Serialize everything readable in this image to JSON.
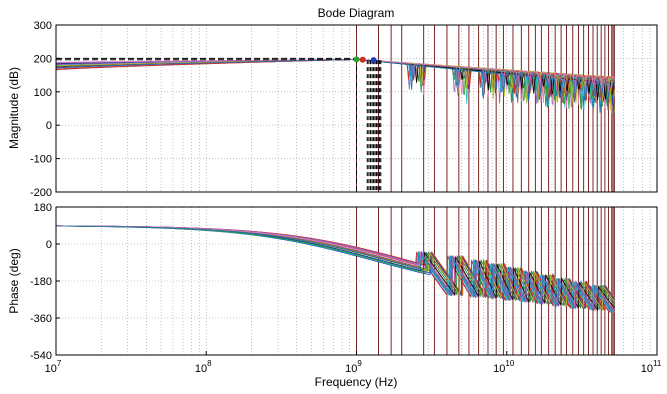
{
  "chart_data": [
    {
      "type": "line",
      "title": "Bode Diagram",
      "ylabel": "Magnitude (dB)",
      "xlabel": "",
      "x_scale": "log",
      "xlim": [
        10000000,
        100000000000
      ],
      "ylim": [
        -200,
        300
      ],
      "yticks": [
        -200,
        -100,
        0,
        100,
        200,
        300
      ],
      "grid": true,
      "legend": "none",
      "series_count": 30,
      "envelope": {
        "low_freq_level_db": [
          165,
          190
        ],
        "level_at_1e9_db": 197,
        "resonance_peaks_hz": [
          2500000000,
          5000000000,
          7500000000,
          10000000000,
          12500000000,
          15000000000,
          17500000000,
          20000000000,
          22500000000,
          25000000000,
          30000000000,
          35000000000,
          40000000000,
          45000000000,
          50000000000
        ],
        "notch_depth_db": [
          30,
          80
        ],
        "level_at_5e10_db": 130
      },
      "markers": [
        {
          "x": 1000000000,
          "y": 197,
          "color": "#2ca02c"
        },
        {
          "x": 1100000000,
          "y": 196,
          "color": "#d62728"
        },
        {
          "x": 1300000000,
          "y": 195,
          "color": "#1f3fbf"
        }
      ],
      "reference_line_db": 200
    },
    {
      "type": "line",
      "title": "",
      "ylabel": "Phase (deg)",
      "xlabel": "Frequency  (Hz)",
      "x_scale": "log",
      "xlim": [
        10000000,
        100000000000
      ],
      "xticks": [
        10000000,
        100000000,
        1000000000,
        10000000000,
        100000000000
      ],
      "xtick_labels": [
        [
          "10",
          "7"
        ],
        [
          "10",
          "8"
        ],
        [
          "10",
          "9"
        ],
        [
          "10",
          "10"
        ],
        [
          "10",
          "11"
        ]
      ],
      "ylim": [
        -540,
        180
      ],
      "yticks": [
        -540,
        -360,
        -180,
        0,
        180
      ],
      "grid": true,
      "legend": "none",
      "series_count": 30,
      "envelope": {
        "low_freq_phase_deg": 90,
        "phase_at_1e9_deg": [
          -10,
          30
        ],
        "phase_at_2_5e9_deg": [
          -280,
          -200
        ],
        "wrap_points_hz": [
          2800000000,
          4500000000,
          6500000000,
          8500000000,
          11000000000,
          14000000000,
          18000000000,
          23000000000,
          30000000000,
          40000000000
        ],
        "phase_at_5e10_deg": [
          -330,
          -260
        ]
      }
    }
  ],
  "vertical_lines_hz": [
    1000000000,
    1400000000,
    1700000000,
    2000000000,
    2800000000,
    3300000000,
    4000000000,
    4800000000,
    5600000000,
    6500000000,
    7500000000,
    8500000000,
    9500000000,
    11000000000,
    12500000000,
    14000000000,
    15500000000,
    17000000000,
    19000000000,
    21000000000,
    23000000000,
    25000000000,
    27500000000,
    30000000000,
    32500000000,
    35000000000,
    37500000000,
    40000000000,
    42500000000,
    45000000000,
    47500000000,
    50000000000,
    51000000000,
    52000000000
  ],
  "colors": {
    "vertical_lines": "#6b0f0f",
    "grid": "#9a9a9a",
    "dashed_reference": "#000000",
    "series": [
      "#1f3fbf",
      "#2ca02c",
      "#d62728",
      "#17becf",
      "#9467bd",
      "#000000",
      "#bcbd22",
      "#8c564b",
      "#e377c2",
      "#1f77b4"
    ]
  }
}
